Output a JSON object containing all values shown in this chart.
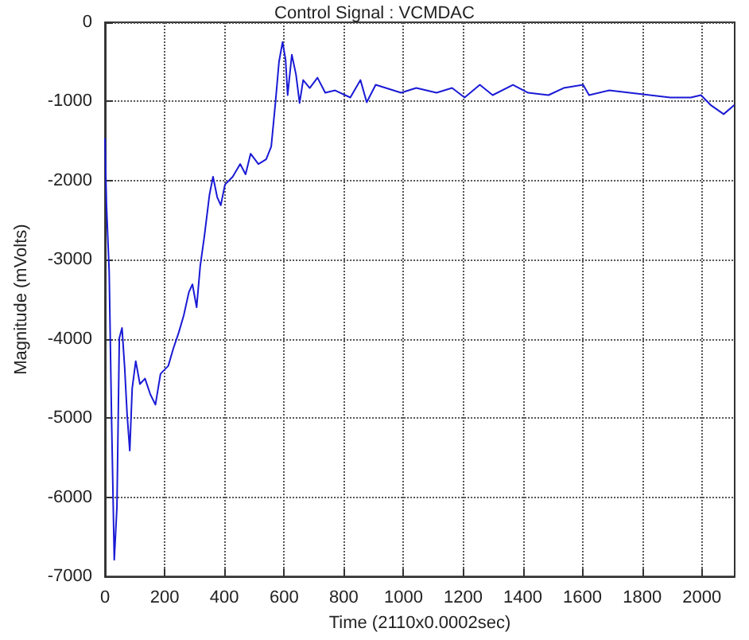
{
  "chart_data": {
    "type": "line",
    "title": "Control Signal : VCMDAC",
    "xlabel": "Time (2110x0.0002sec)",
    "ylabel": "Magnitude (mVolts)",
    "x": [
      0,
      5,
      14,
      22,
      31,
      40,
      48,
      57,
      66,
      74,
      83,
      91,
      103,
      117,
      134,
      152,
      169,
      186,
      212,
      229,
      247,
      264,
      281,
      293,
      307,
      319,
      333,
      350,
      362,
      376,
      388,
      402,
      428,
      453,
      471,
      488,
      514,
      540,
      557,
      571,
      583,
      595,
      605,
      612,
      626,
      640,
      652,
      664,
      686,
      712,
      738,
      771,
      822,
      856,
      877,
      907,
      992,
      1043,
      1111,
      1163,
      1205,
      1256,
      1299,
      1367,
      1418,
      1486,
      1537,
      1602,
      1622,
      1690,
      1758,
      1826,
      1894,
      1963,
      1997,
      2031,
      2073,
      2107
    ],
    "series": [
      {
        "color": "#1a1ad6",
        "values": [
          -1470,
          -2310,
          -3150,
          -5020,
          -6790,
          -6120,
          -3990,
          -3860,
          -4370,
          -4950,
          -5410,
          -4630,
          -4280,
          -4570,
          -4500,
          -4700,
          -4830,
          -4440,
          -4340,
          -4120,
          -3920,
          -3700,
          -3410,
          -3310,
          -3600,
          -3080,
          -2700,
          -2180,
          -1950,
          -2210,
          -2310,
          -2050,
          -1950,
          -1790,
          -1920,
          -1660,
          -1790,
          -1730,
          -1570,
          -1020,
          -500,
          -250,
          -470,
          -920,
          -410,
          -660,
          -1020,
          -730,
          -830,
          -700,
          -890,
          -860,
          -950,
          -730,
          -1010,
          -790,
          -890,
          -830,
          -890,
          -830,
          -950,
          -790,
          -920,
          -790,
          -890,
          -920,
          -830,
          -790,
          -920,
          -860,
          -890,
          -920,
          -950,
          -950,
          -920,
          -1050,
          -1160,
          -1050
        ]
      }
    ],
    "xlim": [
      0,
      2110
    ],
    "xticks": [
      0,
      200,
      400,
      600,
      800,
      1000,
      1200,
      1400,
      1600,
      1800,
      2000
    ],
    "ylim": [
      -7000,
      0
    ],
    "yticks": [
      -7000,
      -6000,
      -5000,
      -4000,
      -3000,
      -2000,
      -1000,
      0
    ],
    "grid": true,
    "marker": "none",
    "line_style": "solid"
  }
}
